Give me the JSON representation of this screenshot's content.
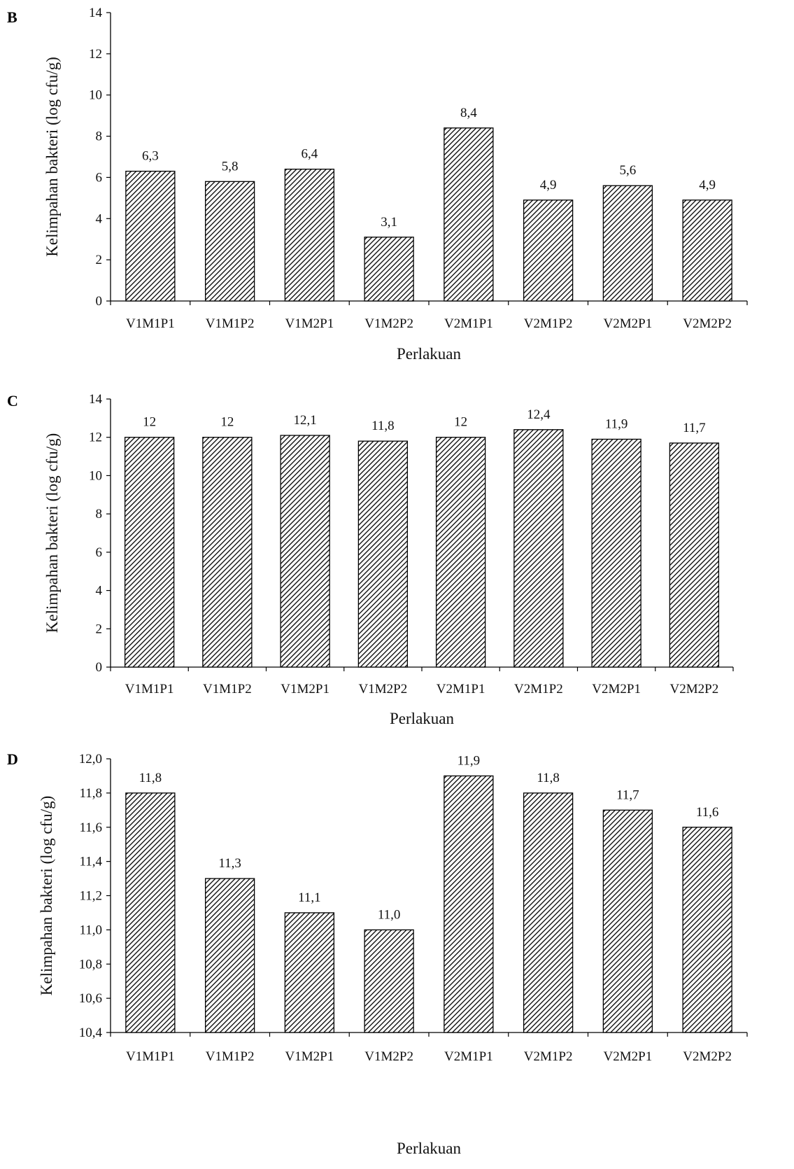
{
  "chart_data": [
    {
      "type": "bar",
      "panel": "B",
      "categories": [
        "V1M1P1",
        "V1M1P2",
        "V1M2P1",
        "V1M2P2",
        "V2M1P1",
        "V2M1P2",
        "V2M2P1",
        "V2M2P2"
      ],
      "values": [
        6.3,
        5.8,
        6.4,
        3.1,
        8.4,
        4.9,
        5.6,
        4.9
      ],
      "data_labels": [
        "6,3",
        "5,8",
        "6,4",
        "3,1",
        "8,4",
        "4,9",
        "5,6",
        "4,9"
      ],
      "yticks": [
        "0",
        "2",
        "4",
        "6",
        "8",
        "10",
        "12",
        "14"
      ],
      "ylim": [
        0,
        14
      ],
      "xlabel": "Perlakuan",
      "ylabel": "Kelimpahan bakteri (log cfu/g)",
      "grid": false
    },
    {
      "type": "bar",
      "panel": "C",
      "categories": [
        "V1M1P1",
        "V1M1P2",
        "V1M2P1",
        "V1M2P2",
        "V2M1P1",
        "V2M1P2",
        "V2M2P1",
        "V2M2P2"
      ],
      "values": [
        12,
        12,
        12.1,
        11.8,
        12,
        12.4,
        11.9,
        11.7
      ],
      "data_labels": [
        "12",
        "12",
        "12,1",
        "11,8",
        "12",
        "12,4",
        "11,9",
        "11,7"
      ],
      "yticks": [
        "0",
        "2",
        "4",
        "6",
        "8",
        "10",
        "12",
        "14"
      ],
      "ylim": [
        0,
        14
      ],
      "xlabel": "Perlakuan",
      "ylabel": "Kelimpahan bakteri (log cfu/g)",
      "grid": false
    },
    {
      "type": "bar",
      "panel": "D",
      "categories": [
        "V1M1P1",
        "V1M1P2",
        "V1M2P1",
        "V1M2P2",
        "V2M1P1",
        "V2M1P2",
        "V2M2P1",
        "V2M2P2"
      ],
      "values": [
        11.8,
        11.3,
        11.1,
        11.0,
        11.9,
        11.8,
        11.7,
        11.6
      ],
      "data_labels": [
        "11,8",
        "11,3",
        "11,1",
        "11,0",
        "11,9",
        "11,8",
        "11,7",
        "11,6"
      ],
      "yticks": [
        "10,4",
        "10,6",
        "10,8",
        "11,0",
        "11,2",
        "11,4",
        "11,6",
        "11,8",
        "12,0"
      ],
      "ylim": [
        10.4,
        12.0
      ],
      "xlabel": "Perlakuan",
      "ylabel": "Kelimpahan bakteri (log cfu/g)",
      "grid": false
    }
  ]
}
